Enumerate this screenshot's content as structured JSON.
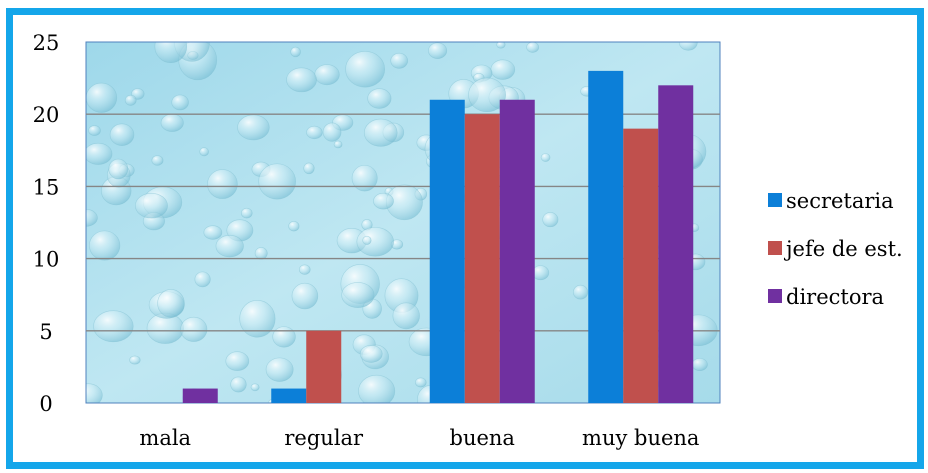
{
  "chart_data": {
    "type": "bar",
    "title": "",
    "xlabel": "",
    "ylabel": "",
    "categories": [
      "mala",
      "regular",
      "buena",
      "muy buena"
    ],
    "series": [
      {
        "name": "secretaria",
        "color": "#0c7fd8",
        "values": [
          0,
          1,
          21,
          23
        ]
      },
      {
        "name": "jefe de est.",
        "color": "#c0504d",
        "values": [
          0,
          5,
          20,
          19
        ]
      },
      {
        "name": "directora",
        "color": "#7030a0",
        "values": [
          1,
          0,
          21,
          22
        ]
      }
    ],
    "ylim": [
      0,
      25
    ],
    "yticks": [
      "0",
      "5",
      "10",
      "15",
      "20",
      "25"
    ],
    "grid": true,
    "legend": "right",
    "frame_color": "#14a6ea",
    "plot_background": "water droplets texture, light blue"
  }
}
